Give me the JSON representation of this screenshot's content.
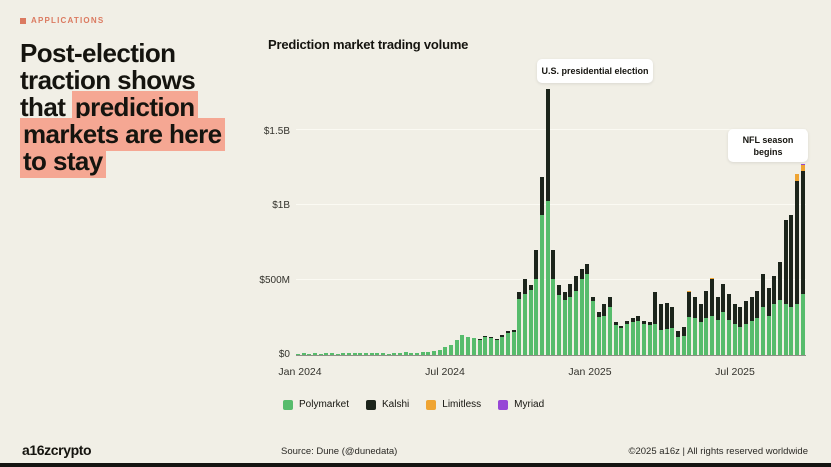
{
  "eyebrow": {
    "label": "APPLICATIONS",
    "color": "#DB7A60"
  },
  "headline": {
    "plain": "Post-election traction shows that ",
    "highlighted": "prediction markets are here to stay",
    "highlight_color": "#F5A793"
  },
  "chart": {
    "title": "Prediction market trading volume"
  },
  "chart_data": {
    "type": "bar",
    "stacked": true,
    "title": "Prediction market trading volume",
    "unit": "USD millions per week",
    "ylim_m": [
      0,
      1800
    ],
    "y_ticks": [
      "$0",
      "$500M",
      "$1B",
      "$1.5B"
    ],
    "y_tick_values_m": [
      0,
      500,
      1000,
      1500
    ],
    "x_ticks": [
      "Jan 2024",
      "Jul 2024",
      "Jan 2025",
      "Jul 2025"
    ],
    "grid": true,
    "legend_position": "bottom",
    "series_names": [
      "Polymarket",
      "Kalshi",
      "Limitless",
      "Myriad"
    ],
    "colors": {
      "polymarket": "#57BC6C",
      "kalshi": "#1C241B",
      "limitless": "#EFA432",
      "myriad": "#9747D6"
    },
    "annotations": [
      {
        "text": "U.S. presidential election",
        "points_to": "election week, Nov 2024, ~$1.78B total"
      },
      {
        "text": "NFL season begins",
        "points_to": "Sep 2025 weeks, ~$1.2–1.3B total"
      }
    ],
    "weeks_values_m": [
      [
        8,
        0,
        0,
        0
      ],
      [
        12,
        0,
        0,
        0
      ],
      [
        9,
        0,
        0,
        0
      ],
      [
        13,
        0,
        0,
        0
      ],
      [
        10,
        0,
        0,
        0
      ],
      [
        14,
        0,
        0,
        0
      ],
      [
        11,
        0,
        0,
        0
      ],
      [
        9,
        0,
        0,
        0
      ],
      [
        13,
        0,
        0,
        0
      ],
      [
        15,
        0,
        0,
        0
      ],
      [
        11,
        0,
        0,
        0
      ],
      [
        14,
        0,
        0,
        0
      ],
      [
        16,
        0,
        0,
        0
      ],
      [
        12,
        0,
        0,
        0
      ],
      [
        15,
        0,
        0,
        0
      ],
      [
        11,
        0,
        0,
        0
      ],
      [
        9,
        0,
        0,
        0
      ],
      [
        12,
        0,
        0,
        0
      ],
      [
        15,
        0,
        0,
        0
      ],
      [
        18,
        0,
        0,
        0
      ],
      [
        14,
        0,
        0,
        0
      ],
      [
        16,
        0,
        0,
        0
      ],
      [
        20,
        0,
        0,
        0
      ],
      [
        17,
        0,
        0,
        0
      ],
      [
        27,
        0,
        0,
        0
      ],
      [
        33,
        0,
        0,
        0
      ],
      [
        56,
        0,
        0,
        0
      ],
      [
        67,
        0,
        0,
        0
      ],
      [
        100,
        0,
        0,
        0
      ],
      [
        133,
        0,
        0,
        0
      ],
      [
        122,
        0,
        0,
        0
      ],
      [
        111,
        0,
        0,
        0
      ],
      [
        100,
        5,
        0,
        0
      ],
      [
        122,
        6,
        0,
        0
      ],
      [
        111,
        8,
        0,
        0
      ],
      [
        100,
        8,
        0,
        0
      ],
      [
        122,
        10,
        0,
        0
      ],
      [
        145,
        12,
        0,
        0
      ],
      [
        155,
        12,
        0,
        0
      ],
      [
        375,
        45,
        0,
        0
      ],
      [
        410,
        100,
        0,
        0
      ],
      [
        435,
        30,
        0,
        0
      ],
      [
        510,
        190,
        0,
        0
      ],
      [
        935,
        255,
        0,
        0
      ],
      [
        1030,
        745,
        0,
        0
      ],
      [
        510,
        190,
        0,
        0
      ],
      [
        400,
        65,
        0,
        0
      ],
      [
        365,
        55,
        0,
        0
      ],
      [
        385,
        90,
        0,
        0
      ],
      [
        430,
        100,
        0,
        0
      ],
      [
        510,
        65,
        0,
        0
      ],
      [
        540,
        65,
        0,
        0
      ],
      [
        360,
        25,
        0,
        0
      ],
      [
        255,
        30,
        0,
        0
      ],
      [
        260,
        80,
        0,
        0
      ],
      [
        320,
        70,
        0,
        0
      ],
      [
        200,
        20,
        0,
        0
      ],
      [
        180,
        15,
        0,
        0
      ],
      [
        205,
        25,
        0,
        0
      ],
      [
        220,
        30,
        0,
        0
      ],
      [
        230,
        30,
        0,
        0
      ],
      [
        205,
        25,
        0,
        0
      ],
      [
        200,
        20,
        0,
        0
      ],
      [
        210,
        210,
        0,
        0
      ],
      [
        165,
        175,
        0,
        0
      ],
      [
        175,
        175,
        0,
        0
      ],
      [
        180,
        140,
        0,
        0
      ],
      [
        120,
        40,
        0,
        0
      ],
      [
        125,
        60,
        0,
        0
      ],
      [
        255,
        165,
        6,
        0
      ],
      [
        245,
        140,
        0,
        0
      ],
      [
        220,
        120,
        0,
        0
      ],
      [
        250,
        180,
        0,
        0
      ],
      [
        260,
        245,
        6,
        0
      ],
      [
        235,
        150,
        0,
        0
      ],
      [
        285,
        190,
        0,
        0
      ],
      [
        235,
        170,
        0,
        0
      ],
      [
        210,
        130,
        0,
        0
      ],
      [
        190,
        130,
        0,
        0
      ],
      [
        210,
        150,
        0,
        0
      ],
      [
        225,
        160,
        0,
        0
      ],
      [
        250,
        180,
        0,
        0
      ],
      [
        320,
        220,
        0,
        0
      ],
      [
        260,
        190,
        0,
        0
      ],
      [
        340,
        190,
        0,
        0
      ],
      [
        365,
        255,
        0,
        0
      ],
      [
        340,
        560,
        0,
        0
      ],
      [
        320,
        615,
        0,
        0
      ],
      [
        340,
        820,
        45,
        5
      ],
      [
        405,
        820,
        45,
        5
      ]
    ]
  },
  "legend": {
    "items": [
      {
        "label": "Polymarket",
        "color": "#57BC6C"
      },
      {
        "label": "Kalshi",
        "color": "#1C241B"
      },
      {
        "label": "Limitless",
        "color": "#EFA432"
      },
      {
        "label": "Myriad",
        "color": "#9747D6"
      }
    ]
  },
  "footer": {
    "logo": "a16zcrypto",
    "source": "Source: Dune (@dunedata)",
    "rights": "©2025 a16z | All rights reserved worldwide"
  }
}
